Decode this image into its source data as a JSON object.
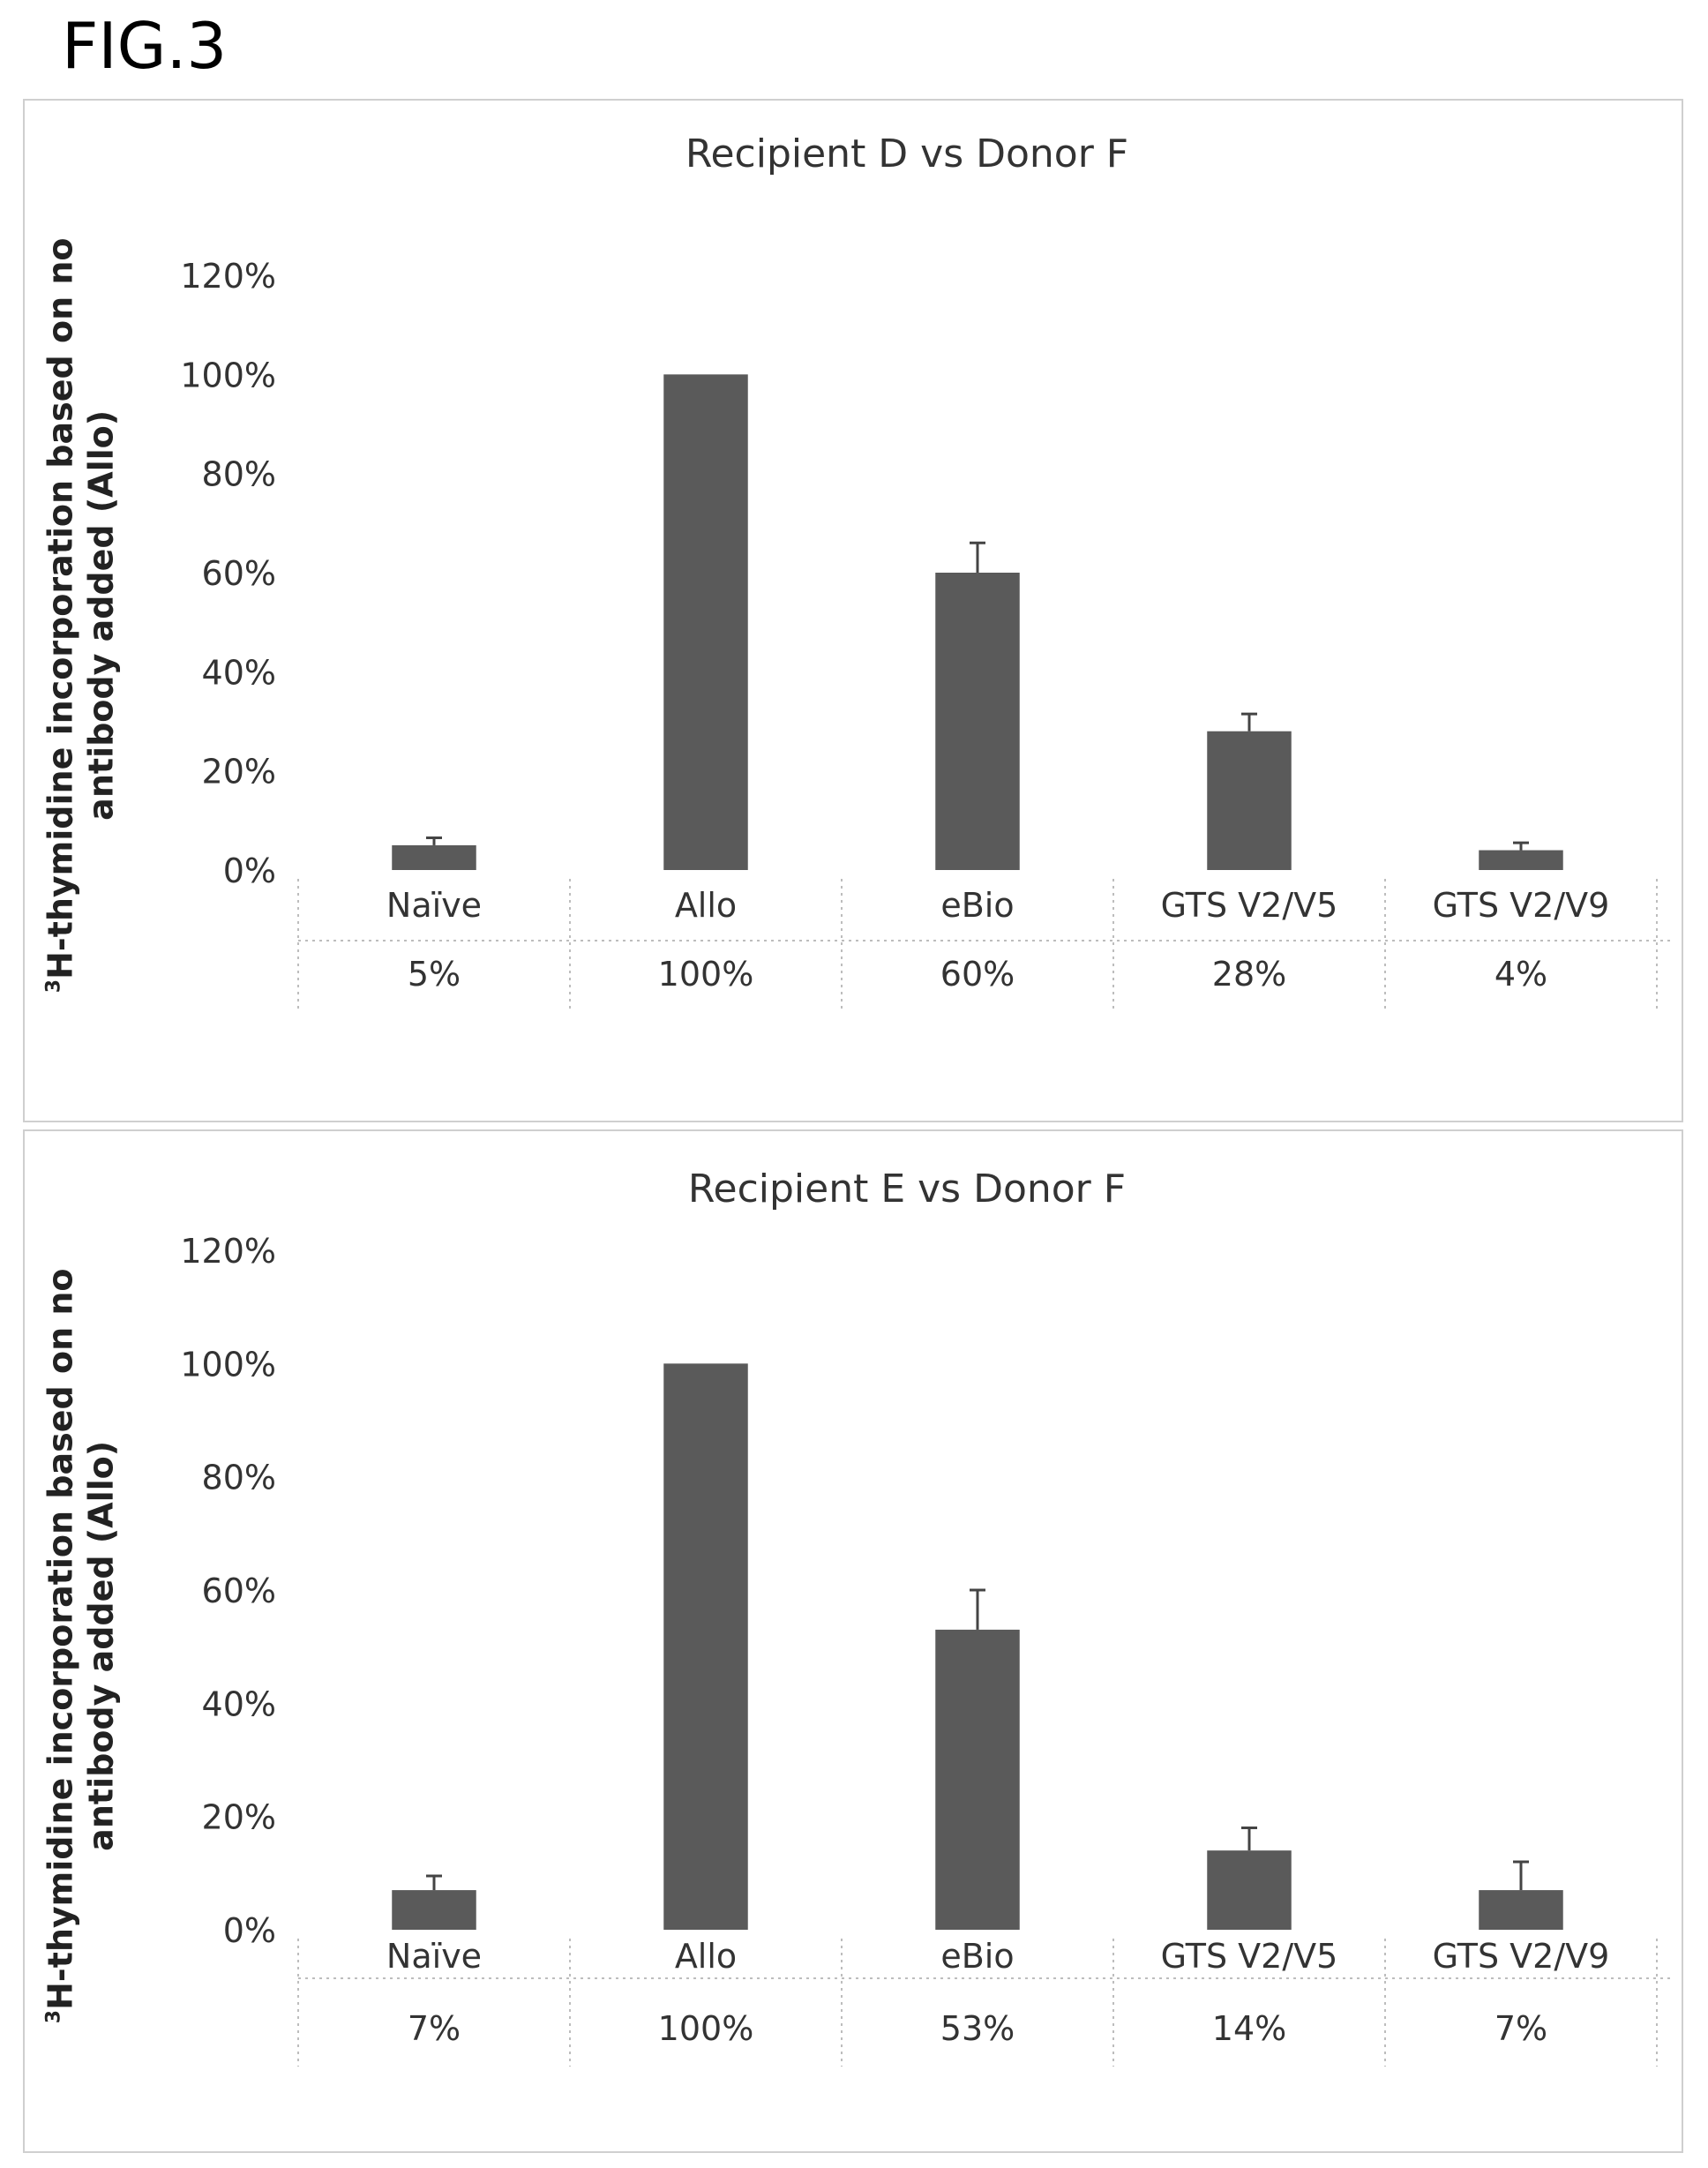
{
  "figure_label": "FIG.3",
  "ylabel_prefix": "3",
  "ylabel_line1": "H-thymidine incorporation based on no",
  "ylabel_line2": "antibody added (Allo)",
  "colors": {
    "bar": "#5a5a5a",
    "text": "#333333",
    "grid": "#bdbdbd",
    "border": "#cfcfcf"
  },
  "chart_data": [
    {
      "type": "bar",
      "title": "Recipient D vs Donor F",
      "categories": [
        "Naïve",
        "Allo",
        "eBio",
        "GTS V2/V5",
        "GTS V2/V9"
      ],
      "values": [
        5,
        100,
        60,
        28,
        4
      ],
      "errors": [
        1.5,
        0,
        6,
        3.5,
        1.5
      ],
      "data_table": [
        "5%",
        "100%",
        "60%",
        "28%",
        "4%"
      ],
      "yticks": [
        "0%",
        "20%",
        "40%",
        "60%",
        "80%",
        "100%",
        "120%"
      ],
      "ylim": [
        0,
        120
      ],
      "grid": false
    },
    {
      "type": "bar",
      "title": "Recipient E vs Donor F",
      "categories": [
        "Naïve",
        "Allo",
        "eBio",
        "GTS V2/V5",
        "GTS V2/V9"
      ],
      "values": [
        7,
        100,
        53,
        14,
        7
      ],
      "errors": [
        2.5,
        0,
        7,
        4,
        5
      ],
      "data_table": [
        "7%",
        "100%",
        "53%",
        "14%",
        "7%"
      ],
      "yticks": [
        "0%",
        "20%",
        "40%",
        "60%",
        "80%",
        "100%",
        "120%"
      ],
      "ylim": [
        0,
        120
      ],
      "grid": false
    }
  ]
}
